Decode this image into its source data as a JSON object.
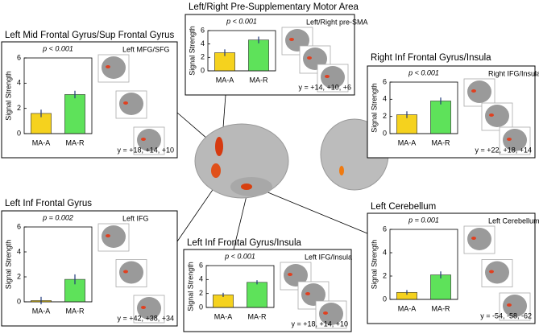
{
  "chart_data": [
    {
      "type": "bar",
      "title": "Left/Right Pre-Supplementary Motor Area",
      "annotation": "p < 0.001",
      "ylabel": "Signal Strength",
      "categories": [
        "MA-A",
        "MA-R"
      ],
      "values": [
        2.7,
        4.6
      ],
      "errors": [
        0.5,
        0.5
      ],
      "colors": [
        "#f5d21e",
        "#5ee25a"
      ],
      "ylim": [
        0,
        6
      ],
      "yticks": [
        0,
        2,
        4,
        6
      ],
      "image_label": "Left/Right pre-SMA",
      "coordinates": "y = +14, +10, +6"
    },
    {
      "type": "bar",
      "title": "Left Mid Frontal Gyrus/Sup Frontal Gyrus",
      "annotation": "p < 0.001",
      "ylabel": "Signal Strength",
      "categories": [
        "MA-A",
        "MA-R"
      ],
      "values": [
        1.6,
        3.1
      ],
      "errors": [
        0.3,
        0.3
      ],
      "colors": [
        "#f5d21e",
        "#5ee25a"
      ],
      "ylim": [
        0,
        6
      ],
      "yticks": [
        0,
        2,
        4,
        6
      ],
      "image_label": "Left MFG/SFG",
      "coordinates": "y = +18, +14, +10"
    },
    {
      "type": "bar",
      "title": "Right Inf Frontal Gyrus/Insula",
      "annotation": "p < 0.001",
      "ylabel": "Signal Strength",
      "categories": [
        "MA-A",
        "MA-R"
      ],
      "values": [
        2.2,
        3.8
      ],
      "errors": [
        0.4,
        0.4
      ],
      "colors": [
        "#f5d21e",
        "#5ee25a"
      ],
      "ylim": [
        0,
        6
      ],
      "yticks": [
        0,
        2,
        4,
        6
      ],
      "image_label": "Right IFG/Insula",
      "coordinates": "y = +22, +18, +14"
    },
    {
      "type": "bar",
      "title": "Left Inf Frontal Gyrus",
      "annotation": "p = 0.002",
      "ylabel": "Signal Strength",
      "categories": [
        "MA-A",
        "MA-R"
      ],
      "values": [
        0.1,
        1.8
      ],
      "errors": [
        0.3,
        0.4
      ],
      "colors": [
        "#f5d21e",
        "#5ee25a"
      ],
      "ylim": [
        0,
        6
      ],
      "yticks": [
        0,
        2,
        4,
        6
      ],
      "image_label": "Left IFG",
      "coordinates": "y = +42, +38, +34"
    },
    {
      "type": "bar",
      "title": "Left Inf Frontal Gyrus/Insula",
      "annotation": "p < 0.001",
      "ylabel": "Signal Strength",
      "categories": [
        "MA-A",
        "MA-R"
      ],
      "values": [
        1.8,
        3.6
      ],
      "errors": [
        0.3,
        0.3
      ],
      "colors": [
        "#f5d21e",
        "#5ee25a"
      ],
      "ylim": [
        0,
        6
      ],
      "yticks": [
        0,
        2,
        4,
        6
      ],
      "image_label": "Left IFG/Insula",
      "coordinates": "y = +18, +14, +10"
    },
    {
      "type": "bar",
      "title": "Left Cerebellum",
      "annotation": "p = 0.001",
      "ylabel": "Signal Strength",
      "categories": [
        "MA-A",
        "MA-R"
      ],
      "values": [
        0.6,
        2.1
      ],
      "errors": [
        0.2,
        0.3
      ],
      "colors": [
        "#f5d21e",
        "#5ee25a"
      ],
      "ylim": [
        0,
        6
      ],
      "yticks": [
        0,
        2,
        4,
        6
      ],
      "image_label": "Left Cerebellum",
      "coordinates": "y = -54, -58, -62"
    }
  ]
}
